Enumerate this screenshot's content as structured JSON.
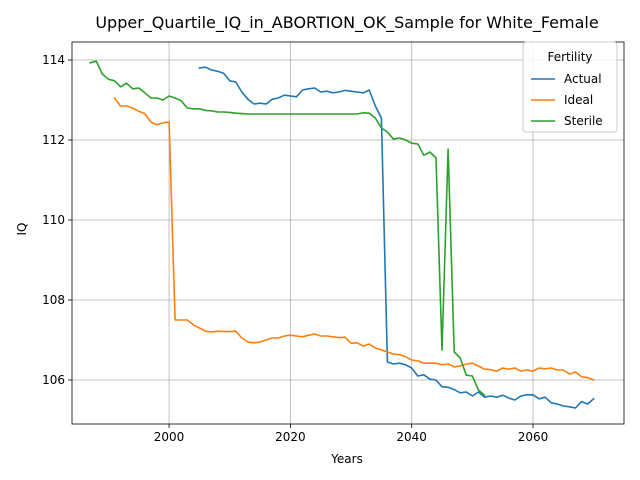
{
  "chart_data": {
    "type": "line",
    "title": "Upper_Quartile_IQ_in_ABORTION_OK_Sample for White_Female",
    "xlabel": "Years",
    "ylabel": "IQ",
    "xlim": [
      1984,
      2075
    ],
    "ylim": [
      104.9,
      114.45
    ],
    "xticks": [
      2000,
      2020,
      2040,
      2060
    ],
    "yticks": [
      106,
      108,
      110,
      112,
      114
    ],
    "grid": true,
    "legend": {
      "title": "Fertility",
      "placement": "top-right"
    },
    "series": [
      {
        "name": "Actual",
        "color": "#1f77b4",
        "points": [
          [
            2005,
            113.8
          ],
          [
            2006,
            113.82
          ],
          [
            2007,
            113.75
          ],
          [
            2008,
            113.72
          ],
          [
            2009,
            113.67
          ],
          [
            2010,
            113.48
          ],
          [
            2011,
            113.45
          ],
          [
            2012,
            113.2
          ],
          [
            2013,
            113.02
          ],
          [
            2014,
            112.9
          ],
          [
            2015,
            112.92
          ],
          [
            2016,
            112.9
          ],
          [
            2017,
            113.02
          ],
          [
            2018,
            113.05
          ],
          [
            2019,
            113.12
          ],
          [
            2020,
            113.1
          ],
          [
            2021,
            113.08
          ],
          [
            2022,
            113.25
          ],
          [
            2023,
            113.28
          ],
          [
            2024,
            113.3
          ],
          [
            2025,
            113.2
          ],
          [
            2026,
            113.22
          ],
          [
            2027,
            113.18
          ],
          [
            2028,
            113.2
          ],
          [
            2029,
            113.24
          ],
          [
            2030,
            113.22
          ],
          [
            2031,
            113.2
          ],
          [
            2032,
            113.18
          ],
          [
            2033,
            113.25
          ],
          [
            2034,
            112.85
          ],
          [
            2035,
            112.55
          ],
          [
            2036,
            106.45
          ],
          [
            2037,
            106.4
          ],
          [
            2038,
            106.42
          ],
          [
            2039,
            106.38
          ],
          [
            2040,
            106.3
          ],
          [
            2041,
            106.1
          ],
          [
            2042,
            106.13
          ],
          [
            2043,
            106.02
          ],
          [
            2044,
            106.0
          ],
          [
            2045,
            105.83
          ],
          [
            2046,
            105.82
          ],
          [
            2047,
            105.76
          ],
          [
            2048,
            105.68
          ],
          [
            2049,
            105.7
          ],
          [
            2050,
            105.6
          ],
          [
            2051,
            105.7
          ],
          [
            2052,
            105.57
          ],
          [
            2053,
            105.6
          ],
          [
            2054,
            105.57
          ],
          [
            2055,
            105.62
          ],
          [
            2056,
            105.55
          ],
          [
            2057,
            105.5
          ],
          [
            2058,
            105.6
          ],
          [
            2059,
            105.63
          ],
          [
            2060,
            105.63
          ],
          [
            2061,
            105.53
          ],
          [
            2062,
            105.57
          ],
          [
            2063,
            105.43
          ],
          [
            2064,
            105.4
          ],
          [
            2065,
            105.35
          ],
          [
            2066,
            105.33
          ],
          [
            2067,
            105.3
          ],
          [
            2068,
            105.46
          ],
          [
            2069,
            105.4
          ],
          [
            2070,
            105.53
          ]
        ]
      },
      {
        "name": "Ideal",
        "color": "#ff7f0e",
        "points": [
          [
            1991,
            113.05
          ],
          [
            1992,
            112.85
          ],
          [
            1993,
            112.85
          ],
          [
            1994,
            112.8
          ],
          [
            1995,
            112.72
          ],
          [
            1996,
            112.66
          ],
          [
            1997,
            112.45
          ],
          [
            1998,
            112.38
          ],
          [
            1999,
            112.43
          ],
          [
            2000,
            112.45
          ],
          [
            2001,
            107.5
          ],
          [
            2002,
            107.5
          ],
          [
            2003,
            107.5
          ],
          [
            2004,
            107.38
          ],
          [
            2005,
            107.3
          ],
          [
            2006,
            107.22
          ],
          [
            2007,
            107.2
          ],
          [
            2008,
            107.22
          ],
          [
            2009,
            107.21
          ],
          [
            2010,
            107.21
          ],
          [
            2011,
            107.22
          ],
          [
            2012,
            107.05
          ],
          [
            2013,
            106.95
          ],
          [
            2014,
            106.93
          ],
          [
            2015,
            106.95
          ],
          [
            2016,
            107.0
          ],
          [
            2017,
            107.05
          ],
          [
            2018,
            107.05
          ],
          [
            2019,
            107.1
          ],
          [
            2020,
            107.12
          ],
          [
            2021,
            107.1
          ],
          [
            2022,
            107.08
          ],
          [
            2023,
            107.12
          ],
          [
            2024,
            107.15
          ],
          [
            2025,
            107.1
          ],
          [
            2026,
            107.1
          ],
          [
            2027,
            107.08
          ],
          [
            2028,
            107.06
          ],
          [
            2029,
            107.07
          ],
          [
            2030,
            106.92
          ],
          [
            2031,
            106.93
          ],
          [
            2032,
            106.85
          ],
          [
            2033,
            106.9
          ],
          [
            2034,
            106.8
          ],
          [
            2035,
            106.75
          ],
          [
            2036,
            106.7
          ],
          [
            2037,
            106.65
          ],
          [
            2038,
            106.63
          ],
          [
            2039,
            106.58
          ],
          [
            2040,
            106.5
          ],
          [
            2041,
            106.48
          ],
          [
            2042,
            106.42
          ],
          [
            2043,
            106.42
          ],
          [
            2044,
            106.42
          ],
          [
            2045,
            106.38
          ],
          [
            2046,
            106.4
          ],
          [
            2047,
            106.33
          ],
          [
            2048,
            106.35
          ],
          [
            2049,
            106.4
          ],
          [
            2050,
            106.42
          ],
          [
            2051,
            106.35
          ],
          [
            2052,
            106.27
          ],
          [
            2053,
            106.26
          ],
          [
            2054,
            106.22
          ],
          [
            2055,
            106.3
          ],
          [
            2056,
            106.27
          ],
          [
            2057,
            106.3
          ],
          [
            2058,
            106.22
          ],
          [
            2059,
            106.25
          ],
          [
            2060,
            106.22
          ],
          [
            2061,
            106.3
          ],
          [
            2062,
            106.28
          ],
          [
            2063,
            106.3
          ],
          [
            2064,
            106.25
          ],
          [
            2065,
            106.25
          ],
          [
            2066,
            106.15
          ],
          [
            2067,
            106.2
          ],
          [
            2068,
            106.08
          ],
          [
            2069,
            106.06
          ],
          [
            2070,
            106.0
          ]
        ]
      },
      {
        "name": "Sterile",
        "color": "#2ca02c",
        "points": [
          [
            1987,
            113.93
          ],
          [
            1988,
            113.97
          ],
          [
            1989,
            113.65
          ],
          [
            1990,
            113.52
          ],
          [
            1991,
            113.48
          ],
          [
            1992,
            113.33
          ],
          [
            1993,
            113.42
          ],
          [
            1994,
            113.28
          ],
          [
            1995,
            113.3
          ],
          [
            1996,
            113.18
          ],
          [
            1997,
            113.05
          ],
          [
            1998,
            113.05
          ],
          [
            1999,
            113.0
          ],
          [
            2000,
            113.1
          ],
          [
            2001,
            113.05
          ],
          [
            2002,
            112.98
          ],
          [
            2003,
            112.8
          ],
          [
            2004,
            112.78
          ],
          [
            2005,
            112.78
          ],
          [
            2006,
            112.74
          ],
          [
            2007,
            112.73
          ],
          [
            2008,
            112.7
          ],
          [
            2009,
            112.7
          ],
          [
            2010,
            112.69
          ],
          [
            2011,
            112.67
          ],
          [
            2012,
            112.66
          ],
          [
            2013,
            112.65
          ],
          [
            2014,
            112.65
          ],
          [
            2015,
            112.65
          ],
          [
            2016,
            112.65
          ],
          [
            2017,
            112.65
          ],
          [
            2018,
            112.65
          ],
          [
            2019,
            112.65
          ],
          [
            2020,
            112.65
          ],
          [
            2021,
            112.65
          ],
          [
            2022,
            112.65
          ],
          [
            2023,
            112.65
          ],
          [
            2024,
            112.65
          ],
          [
            2025,
            112.65
          ],
          [
            2026,
            112.65
          ],
          [
            2027,
            112.65
          ],
          [
            2028,
            112.65
          ],
          [
            2029,
            112.65
          ],
          [
            2030,
            112.65
          ],
          [
            2031,
            112.65
          ],
          [
            2032,
            112.68
          ],
          [
            2033,
            112.67
          ],
          [
            2034,
            112.55
          ],
          [
            2035,
            112.3
          ],
          [
            2036,
            112.2
          ],
          [
            2037,
            112.02
          ],
          [
            2038,
            112.05
          ],
          [
            2039,
            112.0
          ],
          [
            2040,
            111.92
          ],
          [
            2041,
            111.9
          ],
          [
            2042,
            111.62
          ],
          [
            2043,
            111.7
          ],
          [
            2044,
            111.55
          ],
          [
            2045,
            106.75
          ],
          [
            2046,
            111.77
          ],
          [
            2047,
            106.7
          ],
          [
            2048,
            106.55
          ],
          [
            2049,
            106.12
          ],
          [
            2050,
            106.1
          ],
          [
            2051,
            105.75
          ],
          [
            2052,
            105.62
          ]
        ]
      }
    ]
  }
}
